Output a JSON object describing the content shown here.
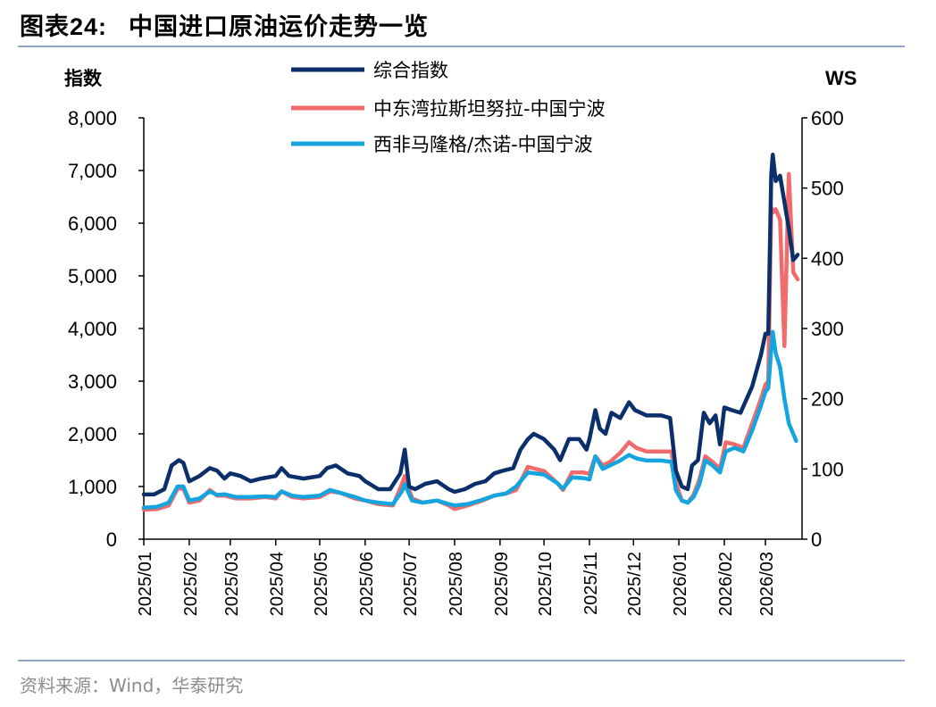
{
  "header": {
    "title_prefix": "图表",
    "title_number": "24:",
    "title_text": "中国进口原油运价走势一览"
  },
  "footer": {
    "source": "资料来源：Wind，华泰研究"
  },
  "chart_data": {
    "type": "line",
    "left_axis_label": "指数",
    "right_axis_label": "WS",
    "ylim_left": [
      0,
      8000
    ],
    "ylim_right": [
      0,
      600
    ],
    "yticks_left": [
      "0",
      "1,000",
      "2,000",
      "3,000",
      "4,000",
      "5,000",
      "6,000",
      "7,000",
      "8,000"
    ],
    "yticks_right": [
      "0",
      "100",
      "200",
      "300",
      "400",
      "500",
      "600"
    ],
    "x_ticks": [
      "2025/01",
      "2025/02",
      "2025/03",
      "2025/04",
      "2025/05",
      "2025/06",
      "2025/07",
      "2025/08",
      "2025/09",
      "2025/10",
      "2025/11",
      "2025/12",
      "2026/01",
      "2026/02",
      "2026/03"
    ],
    "grid": false,
    "legend_position": "top-center",
    "colors": {
      "index": "#0b2f6b",
      "me": "#f26b6b",
      "wa": "#16a4de"
    },
    "series": [
      {
        "name": "综合指数",
        "axis": "left",
        "color": "#0b2f6b",
        "points": [
          [
            "2025-01-01",
            850
          ],
          [
            "2025-01-08",
            850
          ],
          [
            "2025-01-15",
            950
          ],
          [
            "2025-01-20",
            1400
          ],
          [
            "2025-01-25",
            1500
          ],
          [
            "2025-01-28",
            1450
          ],
          [
            "2025-02-01",
            1100
          ],
          [
            "2025-02-08",
            1200
          ],
          [
            "2025-02-15",
            1350
          ],
          [
            "2025-02-20",
            1300
          ],
          [
            "2025-02-25",
            1150
          ],
          [
            "2025-03-01",
            1250
          ],
          [
            "2025-03-08",
            1200
          ],
          [
            "2025-03-15",
            1100
          ],
          [
            "2025-03-22",
            1150
          ],
          [
            "2025-04-01",
            1200
          ],
          [
            "2025-04-05",
            1350
          ],
          [
            "2025-04-10",
            1200
          ],
          [
            "2025-04-20",
            1150
          ],
          [
            "2025-05-01",
            1200
          ],
          [
            "2025-05-06",
            1350
          ],
          [
            "2025-05-12",
            1400
          ],
          [
            "2025-05-20",
            1250
          ],
          [
            "2025-05-28",
            1200
          ],
          [
            "2025-06-01",
            1100
          ],
          [
            "2025-06-10",
            950
          ],
          [
            "2025-06-18",
            950
          ],
          [
            "2025-06-25",
            1250
          ],
          [
            "2025-06-28",
            1700
          ],
          [
            "2025-07-01",
            1000
          ],
          [
            "2025-07-05",
            950
          ],
          [
            "2025-07-12",
            1050
          ],
          [
            "2025-07-20",
            1100
          ],
          [
            "2025-07-28",
            950
          ],
          [
            "2025-08-01",
            900
          ],
          [
            "2025-08-08",
            950
          ],
          [
            "2025-08-15",
            1050
          ],
          [
            "2025-08-22",
            1100
          ],
          [
            "2025-08-28",
            1250
          ],
          [
            "2025-09-03",
            1300
          ],
          [
            "2025-09-10",
            1350
          ],
          [
            "2025-09-15",
            1700
          ],
          [
            "2025-09-20",
            1900
          ],
          [
            "2025-09-24",
            2000
          ],
          [
            "2025-10-01",
            1900
          ],
          [
            "2025-10-08",
            1700
          ],
          [
            "2025-10-12",
            1500
          ],
          [
            "2025-10-18",
            1900
          ],
          [
            "2025-10-25",
            1900
          ],
          [
            "2025-10-30",
            1700
          ],
          [
            "2025-11-01",
            1900
          ],
          [
            "2025-11-05",
            2450
          ],
          [
            "2025-11-08",
            2100
          ],
          [
            "2025-11-12",
            2000
          ],
          [
            "2025-11-16",
            2400
          ],
          [
            "2025-11-22",
            2300
          ],
          [
            "2025-11-28",
            2600
          ],
          [
            "2025-12-02",
            2450
          ],
          [
            "2025-12-10",
            2350
          ],
          [
            "2025-12-20",
            2350
          ],
          [
            "2025-12-26",
            2300
          ],
          [
            "2025-12-30",
            1300
          ],
          [
            "2026-01-03",
            1000
          ],
          [
            "2026-01-07",
            950
          ],
          [
            "2026-01-10",
            1400
          ],
          [
            "2026-01-14",
            1500
          ],
          [
            "2026-01-18",
            2400
          ],
          [
            "2026-01-22",
            2200
          ],
          [
            "2026-01-26",
            2350
          ],
          [
            "2026-01-29",
            1800
          ],
          [
            "2026-02-01",
            2500
          ],
          [
            "2026-02-06",
            2450
          ],
          [
            "2026-02-12",
            2400
          ],
          [
            "2026-02-20",
            2900
          ],
          [
            "2026-02-26",
            3500
          ],
          [
            "2026-03-01",
            3900
          ],
          [
            "2026-03-03",
            3900
          ],
          [
            "2026-03-05",
            6900
          ],
          [
            "2026-03-06",
            7300
          ],
          [
            "2026-03-08",
            6800
          ],
          [
            "2026-03-11",
            6900
          ],
          [
            "2026-03-14",
            6400
          ],
          [
            "2026-03-17",
            5900
          ],
          [
            "2026-03-20",
            5300
          ],
          [
            "2026-03-23",
            5400
          ]
        ]
      },
      {
        "name": "中东湾拉斯坦努拉-中国宁波",
        "axis": "right",
        "color": "#f26b6b",
        "points": [
          [
            "2025-01-01",
            42
          ],
          [
            "2025-01-10",
            43
          ],
          [
            "2025-01-18",
            48
          ],
          [
            "2025-01-24",
            72
          ],
          [
            "2025-01-28",
            72
          ],
          [
            "2025-02-01",
            52
          ],
          [
            "2025-02-08",
            55
          ],
          [
            "2025-02-15",
            70
          ],
          [
            "2025-02-20",
            62
          ],
          [
            "2025-02-25",
            62
          ],
          [
            "2025-03-05",
            58
          ],
          [
            "2025-03-15",
            58
          ],
          [
            "2025-03-25",
            60
          ],
          [
            "2025-04-01",
            58
          ],
          [
            "2025-04-05",
            68
          ],
          [
            "2025-04-12",
            60
          ],
          [
            "2025-04-20",
            58
          ],
          [
            "2025-05-01",
            60
          ],
          [
            "2025-05-08",
            68
          ],
          [
            "2025-05-15",
            66
          ],
          [
            "2025-05-25",
            58
          ],
          [
            "2025-06-01",
            55
          ],
          [
            "2025-06-10",
            50
          ],
          [
            "2025-06-20",
            48
          ],
          [
            "2025-06-26",
            78
          ],
          [
            "2025-06-28",
            90
          ],
          [
            "2025-07-03",
            58
          ],
          [
            "2025-07-10",
            52
          ],
          [
            "2025-07-20",
            55
          ],
          [
            "2025-07-28",
            48
          ],
          [
            "2025-08-01",
            43
          ],
          [
            "2025-08-10",
            48
          ],
          [
            "2025-08-20",
            55
          ],
          [
            "2025-08-28",
            62
          ],
          [
            "2025-09-05",
            65
          ],
          [
            "2025-09-12",
            70
          ],
          [
            "2025-09-20",
            103
          ],
          [
            "2025-10-01",
            97
          ],
          [
            "2025-10-10",
            80
          ],
          [
            "2025-10-14",
            70
          ],
          [
            "2025-10-20",
            95
          ],
          [
            "2025-10-28",
            95
          ],
          [
            "2025-11-01",
            93
          ],
          [
            "2025-11-05",
            118
          ],
          [
            "2025-11-10",
            105
          ],
          [
            "2025-11-15",
            110
          ],
          [
            "2025-11-22",
            123
          ],
          [
            "2025-11-28",
            138
          ],
          [
            "2025-12-03",
            130
          ],
          [
            "2025-12-10",
            125
          ],
          [
            "2025-12-20",
            125
          ],
          [
            "2025-12-27",
            125
          ],
          [
            "2025-12-30",
            80
          ],
          [
            "2026-01-03",
            55
          ],
          [
            "2026-01-07",
            52
          ],
          [
            "2026-01-11",
            63
          ],
          [
            "2026-01-15",
            85
          ],
          [
            "2026-01-19",
            118
          ],
          [
            "2026-01-24",
            110
          ],
          [
            "2026-01-29",
            100
          ],
          [
            "2026-02-02",
            138
          ],
          [
            "2026-02-08",
            135
          ],
          [
            "2026-02-14",
            130
          ],
          [
            "2026-02-20",
            165
          ],
          [
            "2026-02-26",
            200
          ],
          [
            "2026-03-01",
            220
          ],
          [
            "2026-03-03",
            225
          ],
          [
            "2026-03-05",
            472
          ],
          [
            "2026-03-06",
            465
          ],
          [
            "2026-03-08",
            470
          ],
          [
            "2026-03-11",
            455
          ],
          [
            "2026-03-14",
            275
          ],
          [
            "2026-03-17",
            520
          ],
          [
            "2026-03-20",
            380
          ],
          [
            "2026-03-23",
            370
          ]
        ]
      },
      {
        "name": "西非马隆格/杰诺-中国宁波",
        "axis": "right",
        "color": "#16a4de",
        "points": [
          [
            "2025-01-01",
            45
          ],
          [
            "2025-01-10",
            46
          ],
          [
            "2025-01-18",
            52
          ],
          [
            "2025-01-24",
            75
          ],
          [
            "2025-01-28",
            75
          ],
          [
            "2025-02-01",
            55
          ],
          [
            "2025-02-08",
            58
          ],
          [
            "2025-02-15",
            68
          ],
          [
            "2025-02-20",
            63
          ],
          [
            "2025-02-25",
            64
          ],
          [
            "2025-03-05",
            60
          ],
          [
            "2025-03-15",
            60
          ],
          [
            "2025-03-25",
            61
          ],
          [
            "2025-04-01",
            60
          ],
          [
            "2025-04-05",
            68
          ],
          [
            "2025-04-12",
            62
          ],
          [
            "2025-04-20",
            60
          ],
          [
            "2025-05-01",
            62
          ],
          [
            "2025-05-08",
            70
          ],
          [
            "2025-05-15",
            66
          ],
          [
            "2025-05-25",
            60
          ],
          [
            "2025-06-01",
            55
          ],
          [
            "2025-06-10",
            52
          ],
          [
            "2025-06-20",
            50
          ],
          [
            "2025-06-26",
            68
          ],
          [
            "2025-06-28",
            78
          ],
          [
            "2025-07-03",
            55
          ],
          [
            "2025-07-10",
            52
          ],
          [
            "2025-07-20",
            55
          ],
          [
            "2025-07-28",
            50
          ],
          [
            "2025-08-01",
            48
          ],
          [
            "2025-08-10",
            50
          ],
          [
            "2025-08-20",
            56
          ],
          [
            "2025-08-28",
            62
          ],
          [
            "2025-09-05",
            65
          ],
          [
            "2025-09-12",
            75
          ],
          [
            "2025-09-20",
            95
          ],
          [
            "2025-10-01",
            92
          ],
          [
            "2025-10-10",
            80
          ],
          [
            "2025-10-14",
            72
          ],
          [
            "2025-10-20",
            88
          ],
          [
            "2025-10-28",
            87
          ],
          [
            "2025-11-01",
            85
          ],
          [
            "2025-11-05",
            118
          ],
          [
            "2025-11-10",
            100
          ],
          [
            "2025-11-15",
            105
          ],
          [
            "2025-11-22",
            112
          ],
          [
            "2025-11-28",
            120
          ],
          [
            "2025-12-03",
            115
          ],
          [
            "2025-12-10",
            112
          ],
          [
            "2025-12-20",
            112
          ],
          [
            "2025-12-27",
            110
          ],
          [
            "2025-12-30",
            70
          ],
          [
            "2026-01-03",
            55
          ],
          [
            "2026-01-07",
            52
          ],
          [
            "2026-01-11",
            60
          ],
          [
            "2026-01-15",
            78
          ],
          [
            "2026-01-19",
            112
          ],
          [
            "2026-01-24",
            105
          ],
          [
            "2026-01-29",
            95
          ],
          [
            "2026-02-02",
            125
          ],
          [
            "2026-02-08",
            130
          ],
          [
            "2026-02-14",
            125
          ],
          [
            "2026-02-20",
            155
          ],
          [
            "2026-02-26",
            190
          ],
          [
            "2026-03-01",
            210
          ],
          [
            "2026-03-03",
            215
          ],
          [
            "2026-03-05",
            270
          ],
          [
            "2026-03-06",
            295
          ],
          [
            "2026-03-08",
            265
          ],
          [
            "2026-03-11",
            245
          ],
          [
            "2026-03-14",
            200
          ],
          [
            "2026-03-17",
            165
          ],
          [
            "2026-03-20",
            150
          ],
          [
            "2026-03-22",
            140
          ]
        ]
      }
    ]
  }
}
